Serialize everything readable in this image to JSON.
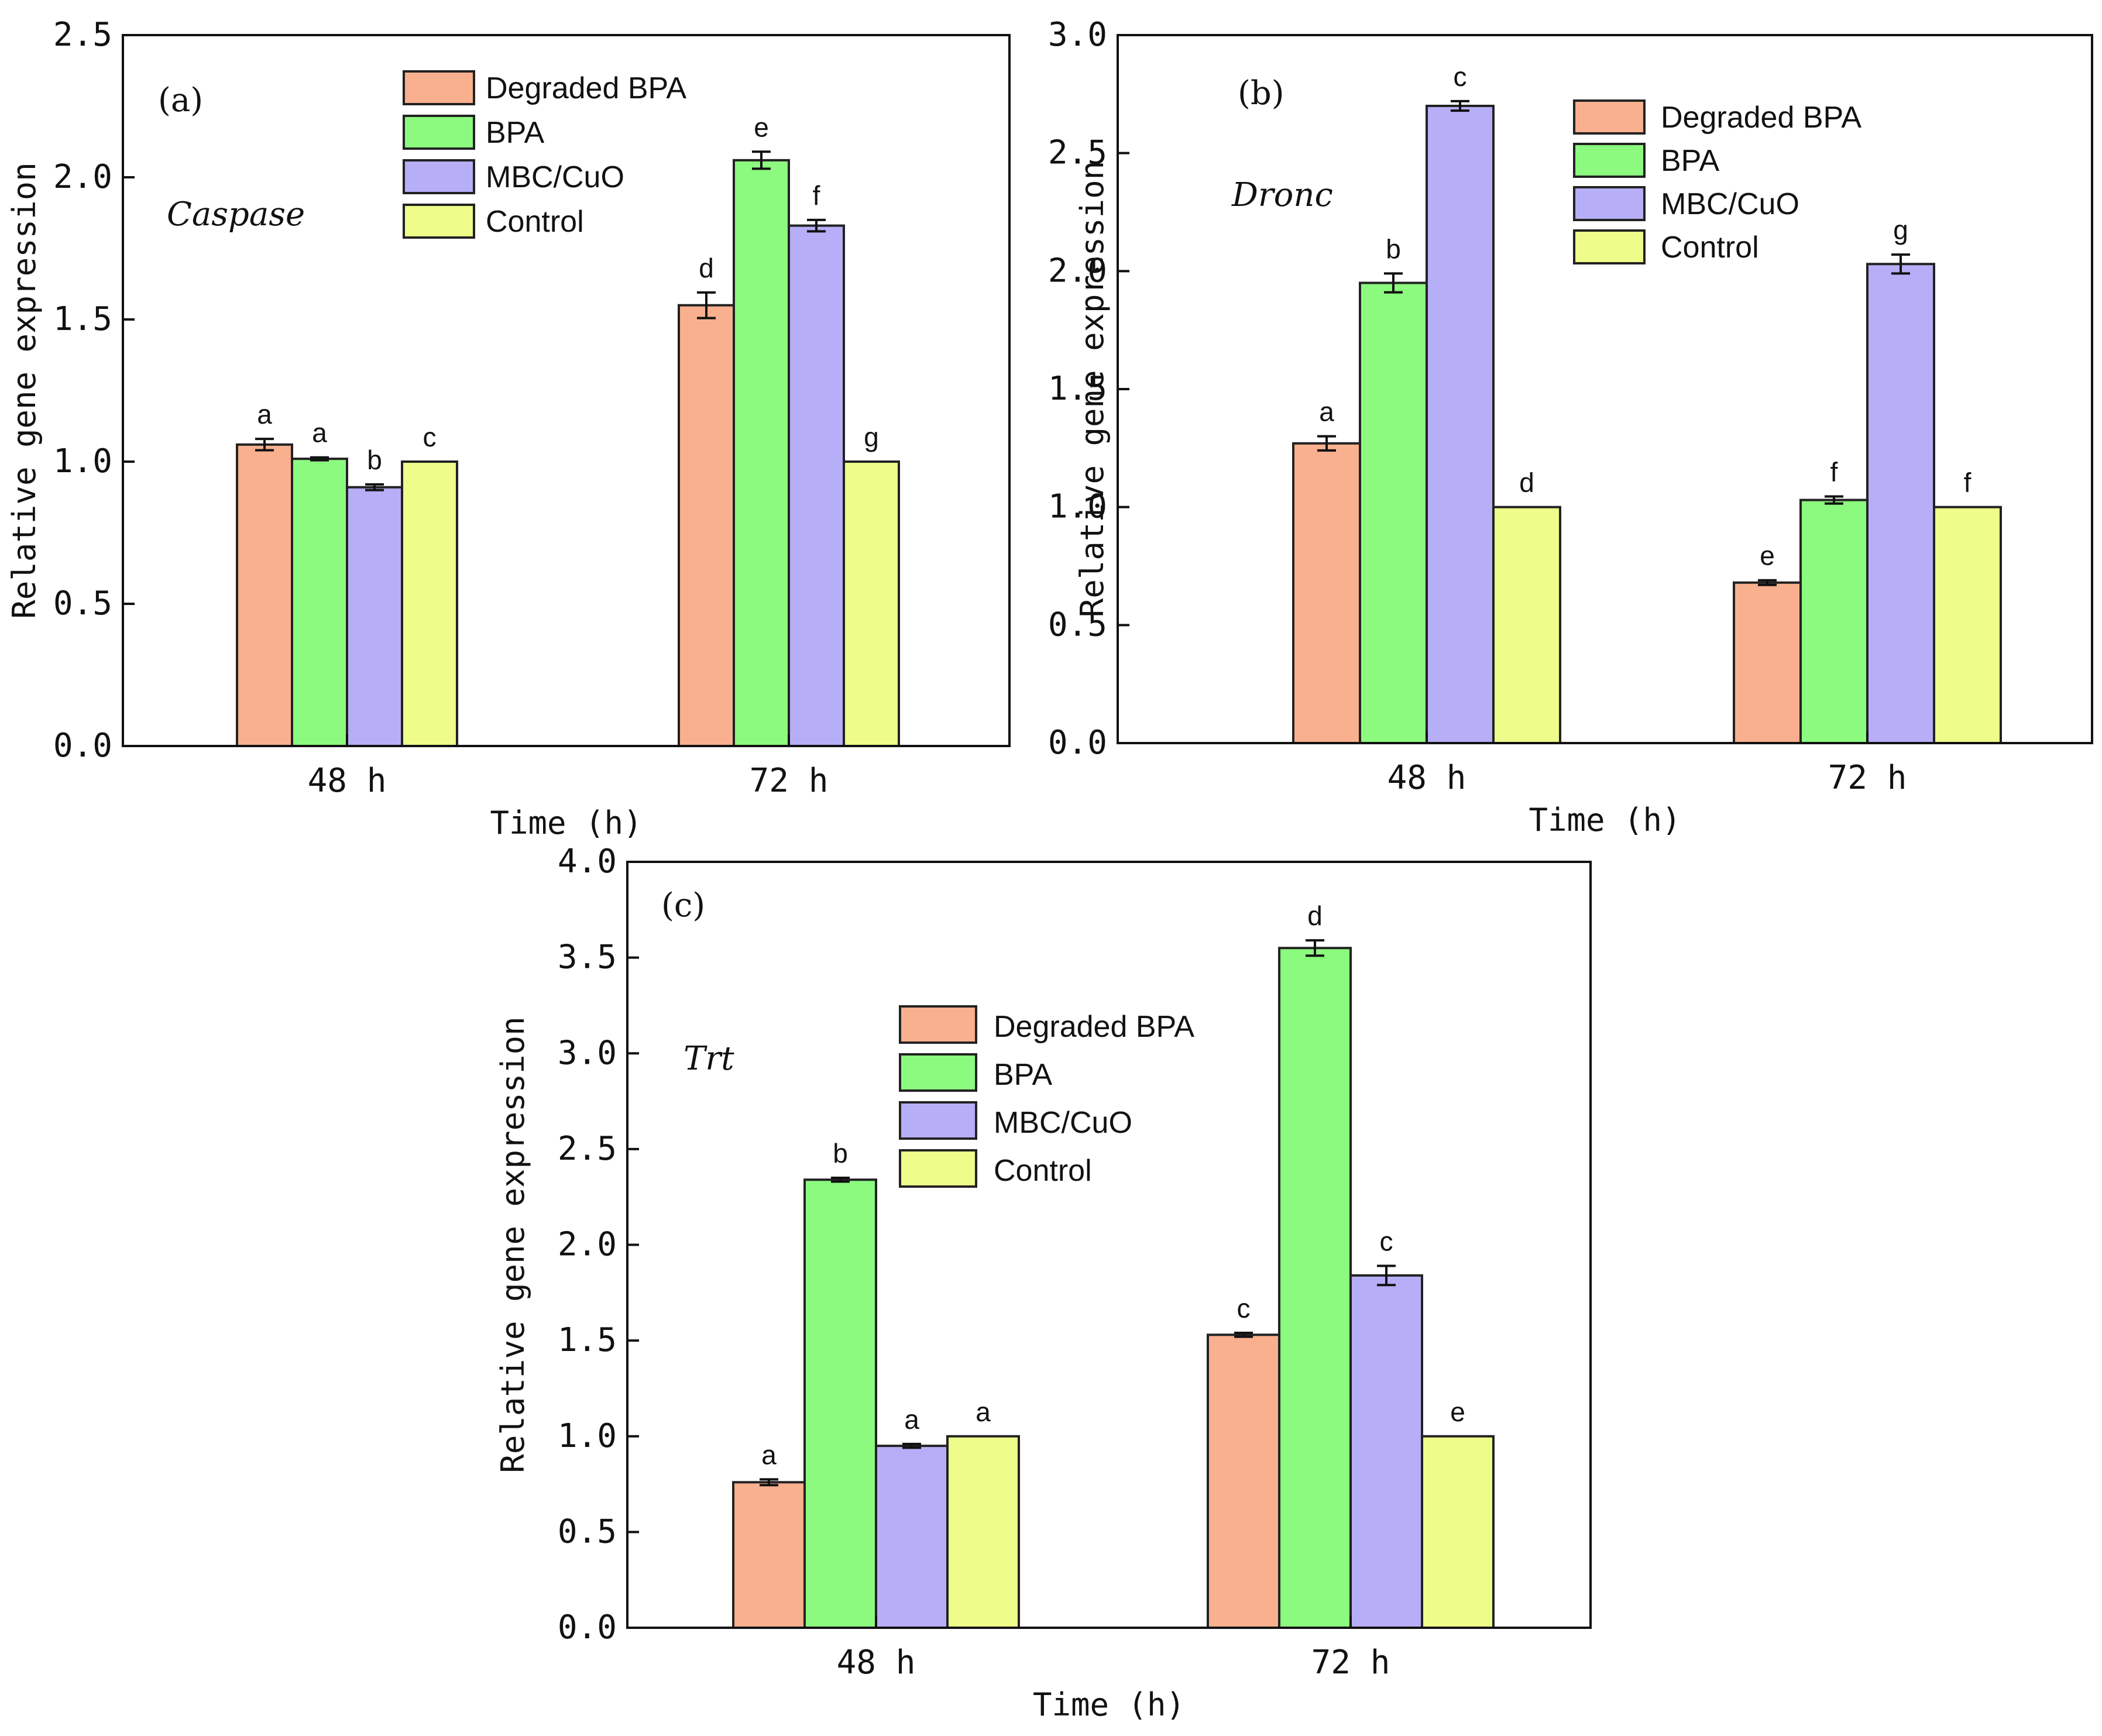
{
  "colors": {
    "Degraded BPA": "#f9b08e",
    "BPA": "#8cfa7e",
    "MBC/CuO": "#b6aef7",
    "Control": "#eefc8a"
  },
  "chart_data": [
    {
      "type": "bar",
      "panel": "(a)",
      "gene": "Caspase",
      "categories": [
        "48 h",
        "72 h"
      ],
      "xlabel": "Time (h)",
      "ylabel": "Relative gene expression",
      "ylim": [
        0,
        2.5
      ],
      "yticks": [
        "0.0",
        "0.5",
        "1.0",
        "1.5",
        "2.0",
        "2.5"
      ],
      "legend": "top-center",
      "series": [
        {
          "name": "Degraded BPA",
          "values": [
            1.06,
            1.55
          ],
          "errors": [
            0.02,
            0.045
          ],
          "letters": [
            "a",
            "d"
          ]
        },
        {
          "name": "BPA",
          "values": [
            1.01,
            2.06
          ],
          "errors": [
            0.005,
            0.03
          ],
          "letters": [
            "a",
            "e"
          ]
        },
        {
          "name": "MBC/CuO",
          "values": [
            0.91,
            1.83
          ],
          "errors": [
            0.01,
            0.02
          ],
          "letters": [
            "b",
            "f"
          ]
        },
        {
          "name": "Control",
          "values": [
            1.0,
            1.0
          ],
          "errors": [
            0,
            0
          ],
          "letters": [
            "c",
            "g"
          ]
        }
      ]
    },
    {
      "type": "bar",
      "panel": "(b)",
      "gene": "Dronc",
      "categories": [
        "48 h",
        "72 h"
      ],
      "xlabel": "Time (h)",
      "ylabel": "Relative gene expression",
      "ylim": [
        0,
        3.0
      ],
      "yticks": [
        "0.0",
        "0.5",
        "1.0",
        "1.5",
        "2.0",
        "2.5",
        "3.0"
      ],
      "legend": "top-right",
      "series": [
        {
          "name": "Degraded BPA",
          "values": [
            1.27,
            0.68
          ],
          "errors": [
            0.03,
            0.01
          ],
          "letters": [
            "a",
            "e"
          ]
        },
        {
          "name": "BPA",
          "values": [
            1.95,
            1.03
          ],
          "errors": [
            0.04,
            0.015
          ],
          "letters": [
            "b",
            "f"
          ]
        },
        {
          "name": "MBC/CuO",
          "values": [
            2.7,
            2.03
          ],
          "errors": [
            0.02,
            0.04
          ],
          "letters": [
            "c",
            "g"
          ]
        },
        {
          "name": "Control",
          "values": [
            1.0,
            1.0
          ],
          "errors": [
            0,
            0
          ],
          "letters": [
            "d",
            "f"
          ]
        }
      ]
    },
    {
      "type": "bar",
      "panel": "(c)",
      "gene": "Trt",
      "categories": [
        "48 h",
        "72 h"
      ],
      "xlabel": "Time (h)",
      "ylabel": "Relative gene expression",
      "ylim": [
        0,
        4.0
      ],
      "yticks": [
        "0.0",
        "0.5",
        "1.0",
        "1.5",
        "2.0",
        "2.5",
        "3.0",
        "3.5",
        "4.0"
      ],
      "legend": "top-left",
      "series": [
        {
          "name": "Degraded BPA",
          "values": [
            0.76,
            1.53
          ],
          "errors": [
            0.015,
            0.01
          ],
          "letters": [
            "a",
            "c"
          ]
        },
        {
          "name": "BPA",
          "values": [
            2.34,
            3.55
          ],
          "errors": [
            0.01,
            0.04
          ],
          "letters": [
            "b",
            "d"
          ]
        },
        {
          "name": "MBC/CuO",
          "values": [
            0.95,
            1.84
          ],
          "errors": [
            0.01,
            0.05
          ],
          "letters": [
            "a",
            "c"
          ]
        },
        {
          "name": "Control",
          "values": [
            1.0,
            1.0
          ],
          "errors": [
            0,
            0
          ],
          "letters": [
            "a",
            "e"
          ]
        }
      ]
    }
  ]
}
